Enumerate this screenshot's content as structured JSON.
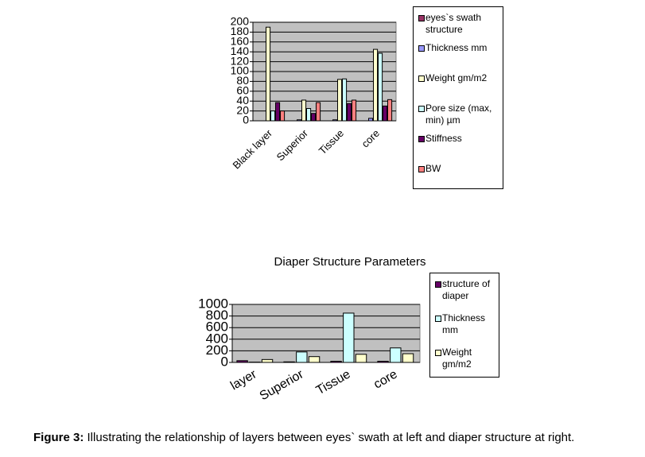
{
  "chart_data": [
    {
      "type": "bar",
      "categories": [
        "Black layer",
        "Superior",
        "Tissue",
        "core"
      ],
      "series": [
        {
          "name": "eyes`s swath structure",
          "color": "#993366",
          "values": [
            0,
            0,
            0,
            0
          ]
        },
        {
          "name": "Thickness  mm",
          "color": "#9999ff",
          "values": [
            0,
            2,
            2,
            5
          ]
        },
        {
          "name": "Weight gm/m2",
          "color": "#ffffcc",
          "values": [
            190,
            42,
            84,
            145
          ]
        },
        {
          "name": "Pore size (max, min) µm",
          "color": "#ccffff",
          "values": [
            20,
            25,
            85,
            137
          ]
        },
        {
          "name": "Stiffness",
          "color": "#660066",
          "values": [
            37,
            15,
            35,
            30
          ]
        },
        {
          "name": "BW",
          "color": "#ff8080",
          "values": [
            20,
            37,
            42,
            43
          ]
        }
      ],
      "ylim": [
        0,
        200
      ],
      "yticks": [
        0,
        20,
        40,
        60,
        80,
        100,
        120,
        140,
        160,
        180,
        200
      ],
      "grid": true,
      "plot_background": "#c0c0c0",
      "legend": "right"
    },
    {
      "type": "bar",
      "title": "Diaper Structure Parameters",
      "categories": [
        "layer",
        "Superior",
        "Tissue",
        "core"
      ],
      "series": [
        {
          "name": "structure of diaper",
          "color": "#660066",
          "values": [
            30,
            10,
            20,
            20
          ]
        },
        {
          "name": "Thickness mm",
          "color": "#ccffff",
          "values": [
            5,
            180,
            850,
            250
          ]
        },
        {
          "name": "Weight gm/m2",
          "color": "#ffffcc",
          "values": [
            50,
            100,
            140,
            150
          ]
        }
      ],
      "ylim": [
        0,
        1000
      ],
      "yticks": [
        0,
        200,
        400,
        600,
        800,
        1000
      ],
      "grid": true,
      "plot_background": "#c0c0c0",
      "legend": "right"
    }
  ],
  "caption": {
    "label": "Figure 3:",
    "text": "Illustrating the relationship of layers between eyes` swath at left and diaper structure at right."
  }
}
